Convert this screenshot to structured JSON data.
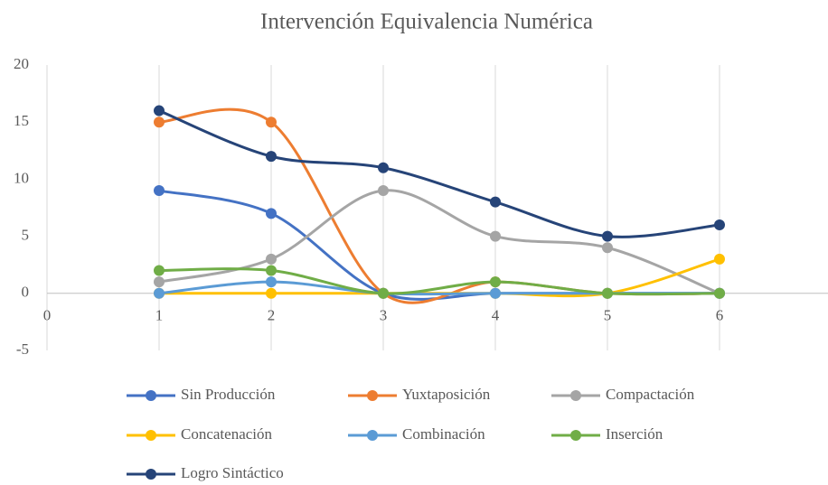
{
  "chart_data": {
    "type": "line",
    "title": "Intervención Equivalencia Numérica",
    "x": [
      1,
      2,
      3,
      4,
      5,
      6
    ],
    "xlim": [
      0,
      7
    ],
    "xticks": [
      0,
      1,
      2,
      3,
      4,
      5,
      6,
      7
    ],
    "ylim": [
      -5,
      20
    ],
    "yticks": [
      -5,
      0,
      5,
      10,
      15,
      20
    ],
    "grid": "x",
    "smooth": true,
    "series": [
      {
        "name": "Sin Producción",
        "color": "#4472c4",
        "values": [
          9,
          7,
          0,
          0,
          0,
          0
        ]
      },
      {
        "name": "Yuxtaposición",
        "color": "#ed7d31",
        "values": [
          15,
          15,
          0,
          1,
          0,
          0
        ]
      },
      {
        "name": "Compactación",
        "color": "#a5a5a5",
        "values": [
          1,
          3,
          9,
          5,
          4,
          0
        ]
      },
      {
        "name": "Concatenación",
        "color": "#ffc000",
        "values": [
          0,
          0,
          0,
          0,
          0,
          3
        ]
      },
      {
        "name": "Combinación",
        "color": "#5b9bd5",
        "values": [
          0,
          1,
          0,
          0,
          0,
          0
        ]
      },
      {
        "name": "Inserción",
        "color": "#70ad47",
        "values": [
          2,
          2,
          0,
          1,
          0,
          0
        ]
      },
      {
        "name": "Logro Sintáctico",
        "color": "#264478",
        "values": [
          16,
          12,
          11,
          8,
          5,
          6
        ]
      }
    ]
  }
}
